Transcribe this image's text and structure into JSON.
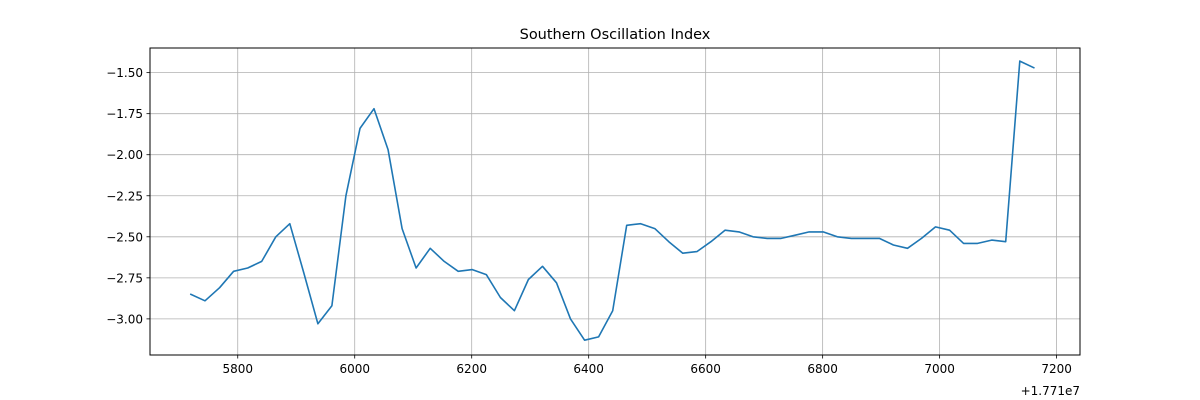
{
  "chart_data": {
    "type": "line",
    "title": "Southern Oscillation Index",
    "xlabel": "",
    "ylabel": "",
    "x_offset_label": "+1.771e7",
    "xlim": [
      5650,
      7240
    ],
    "ylim": [
      -3.22,
      -1.35
    ],
    "xticks": [
      5800,
      6000,
      6200,
      6400,
      6600,
      6800,
      7000,
      7200
    ],
    "xtick_labels": [
      "5800",
      "6000",
      "6200",
      "6400",
      "6600",
      "6800",
      "7000",
      "7200"
    ],
    "yticks": [
      -1.5,
      -1.75,
      -2.0,
      -2.25,
      -2.5,
      -2.75,
      -3.0
    ],
    "ytick_labels": [
      "−1.50",
      "−1.75",
      "−2.00",
      "−2.25",
      "−2.50",
      "−2.75",
      "−3.00"
    ],
    "grid": true,
    "series_color": "#1f77b4",
    "series": [
      {
        "x": [
          5720,
          5744,
          5769,
          5793,
          5817,
          5841,
          5865,
          5889,
          5913,
          5937,
          5961,
          5985,
          6009,
          6033,
          6057,
          6081,
          6105,
          6129,
          6153,
          6177,
          6201,
          6225,
          6249,
          6273,
          6297,
          6321,
          6345,
          6369,
          6393,
          6417,
          6441,
          6465,
          6489,
          6513,
          6537,
          6561,
          6585,
          6609,
          6633,
          6657,
          6681,
          6705,
          6729,
          6753,
          6777,
          6801,
          6825,
          6849,
          6873,
          6897,
          6921,
          6945,
          6969,
          6993,
          7017,
          7041,
          7065,
          7089,
          7113,
          7137,
          7161
        ],
        "values": [
          -2.85,
          -2.89,
          -2.81,
          -2.71,
          -2.69,
          -2.65,
          -2.5,
          -2.42,
          -2.72,
          -3.03,
          -2.92,
          -2.25,
          -1.84,
          -1.72,
          -1.97,
          -2.45,
          -2.69,
          -2.57,
          -2.65,
          -2.71,
          -2.7,
          -2.73,
          -2.87,
          -2.95,
          -2.76,
          -2.68,
          -2.78,
          -3.0,
          -3.13,
          -3.11,
          -2.95,
          -2.43,
          -2.42,
          -2.45,
          -2.53,
          -2.6,
          -2.59,
          -2.53,
          -2.46,
          -2.47,
          -2.5,
          -2.51,
          -2.51,
          -2.49,
          -2.47,
          -2.47,
          -2.5,
          -2.51,
          -2.51,
          -2.51,
          -2.55,
          -2.57,
          -2.51,
          -2.44,
          -2.46,
          -2.54,
          -2.54,
          -2.52,
          -2.53,
          -1.43,
          -1.47
        ]
      }
    ]
  }
}
